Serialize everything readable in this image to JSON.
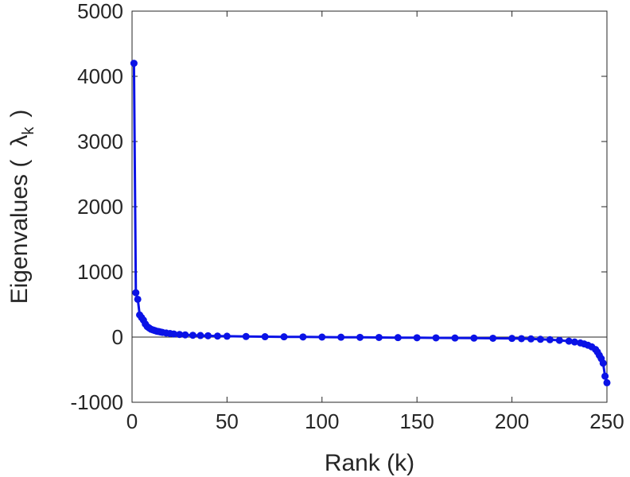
{
  "chart_data": {
    "type": "line",
    "title": "",
    "xlabel": "Rank (k)",
    "ylabel_prefix": "Eigenvalues (",
    "ylabel_symbol": "λ",
    "ylabel_subscript": "k",
    "ylabel_suffix": ")",
    "xlim": [
      0,
      250
    ],
    "ylim": [
      -1000,
      5000
    ],
    "xticks": [
      0,
      50,
      100,
      150,
      200,
      250
    ],
    "yticks": [
      -1000,
      0,
      1000,
      2000,
      3000,
      4000,
      5000
    ],
    "zero_line": true,
    "grid": false,
    "legend": "none",
    "colors": {
      "series": "#0a12e6",
      "axis": "#262626",
      "zero_line": "#262626"
    },
    "series": [
      {
        "x": [
          1,
          2,
          3,
          4,
          5,
          6,
          7,
          8,
          9,
          10,
          11,
          12,
          13,
          14,
          15,
          16,
          18,
          20,
          22,
          25,
          28,
          32,
          36,
          40,
          45,
          50,
          60,
          70,
          80,
          90,
          100,
          110,
          120,
          130,
          140,
          150,
          160,
          170,
          180,
          190,
          200,
          205,
          210,
          215,
          220,
          225,
          230,
          233,
          236,
          238,
          240,
          242,
          244,
          245,
          246,
          247,
          248,
          249,
          250
        ],
        "values": [
          4200,
          680,
          580,
          340,
          300,
          260,
          200,
          160,
          140,
          120,
          110,
          100,
          90,
          85,
          78,
          72,
          62,
          55,
          48,
          40,
          34,
          28,
          24,
          20,
          16,
          13,
          9,
          6,
          4,
          2,
          0,
          -2,
          -4,
          -6,
          -8,
          -10,
          -12,
          -14,
          -16,
          -18,
          -20,
          -24,
          -28,
          -34,
          -40,
          -50,
          -62,
          -75,
          -90,
          -105,
          -125,
          -150,
          -190,
          -230,
          -280,
          -330,
          -400,
          -600,
          -700
        ]
      }
    ]
  }
}
